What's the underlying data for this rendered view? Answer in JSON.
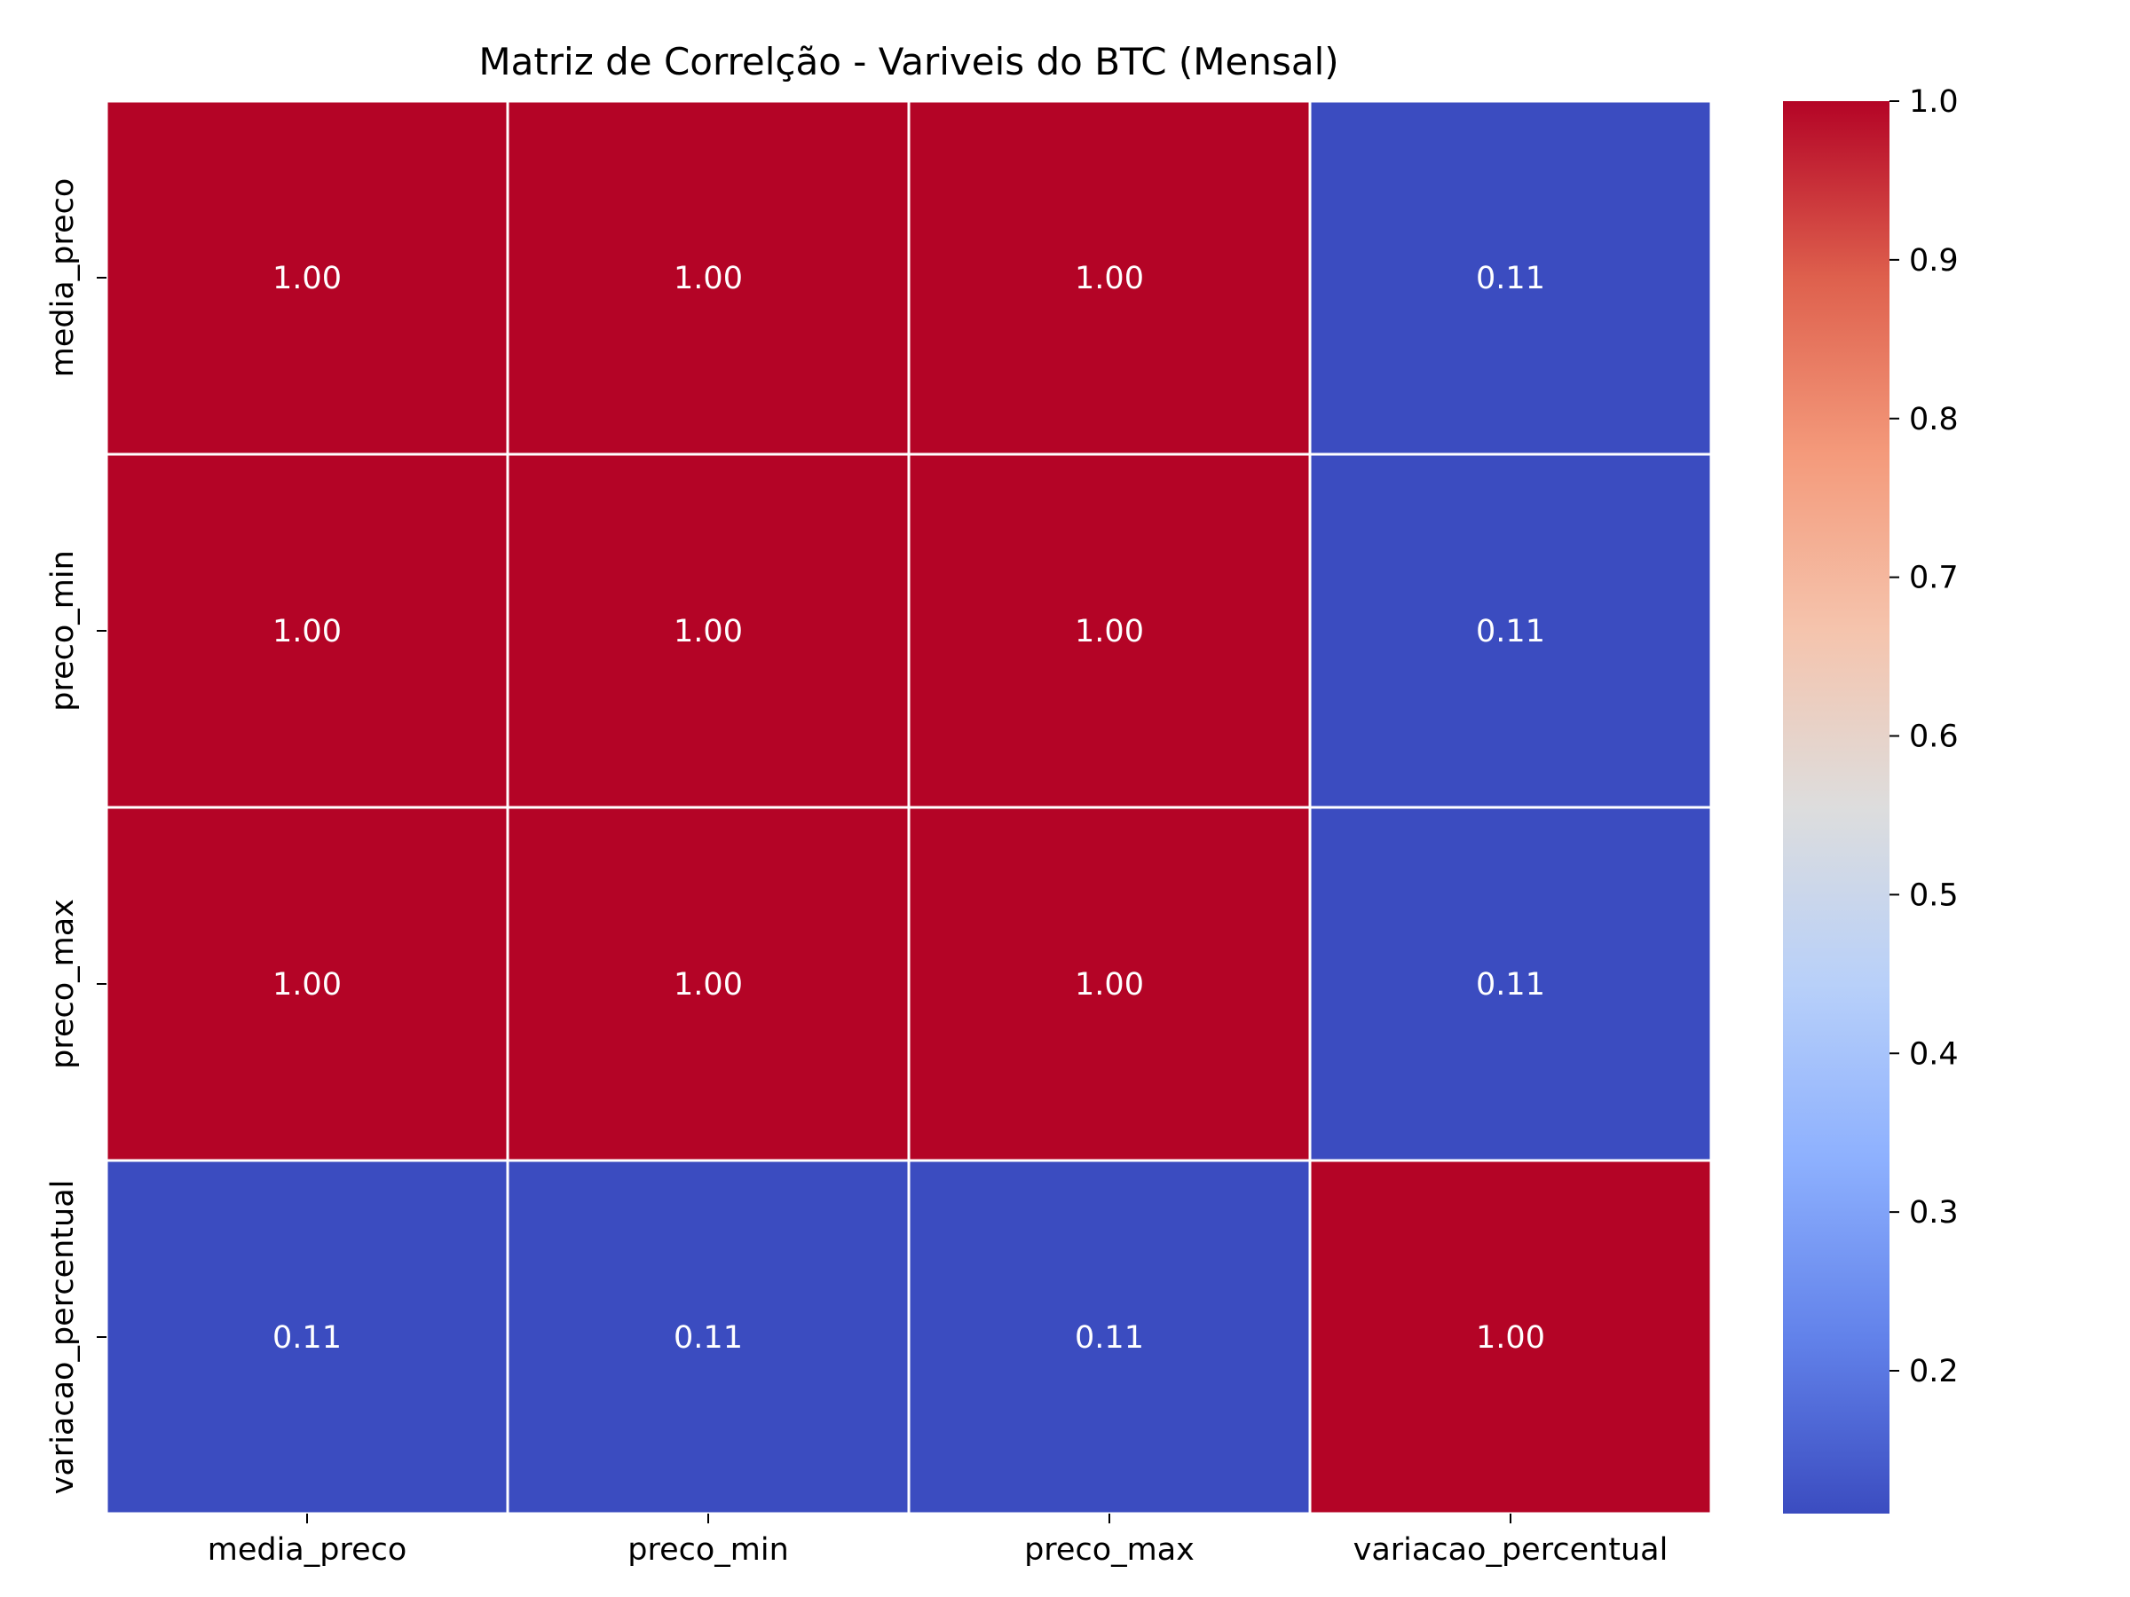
{
  "chart_data": {
    "type": "heatmap",
    "title": "Matriz de Correlção - Variveis do BTC (Mensal)",
    "xlabel": "",
    "ylabel": "",
    "x_categories": [
      "media_preco",
      "preco_min",
      "preco_max",
      "variacao_percentual"
    ],
    "y_categories": [
      "media_preco",
      "preco_min",
      "preco_max",
      "variacao_percentual"
    ],
    "values": [
      [
        1.0,
        1.0,
        1.0,
        0.11
      ],
      [
        1.0,
        1.0,
        1.0,
        0.11
      ],
      [
        1.0,
        1.0,
        1.0,
        0.11
      ],
      [
        0.11,
        0.11,
        0.11,
        1.0
      ]
    ],
    "cell_labels": [
      [
        "1.00",
        "1.00",
        "1.00",
        "0.11"
      ],
      [
        "1.00",
        "1.00",
        "1.00",
        "0.11"
      ],
      [
        "1.00",
        "1.00",
        "1.00",
        "0.11"
      ],
      [
        "0.11",
        "0.11",
        "0.11",
        "1.00"
      ]
    ],
    "colorbar": {
      "colormap": "coolwarm",
      "vmin": 0.11,
      "vmax": 1.0,
      "ticks": [
        0.2,
        0.3,
        0.4,
        0.5,
        0.6,
        0.7,
        0.8,
        0.9,
        1.0
      ],
      "tick_labels": [
        "0.2",
        "0.3",
        "0.4",
        "0.5",
        "0.6",
        "0.7",
        "0.8",
        "0.9",
        "1.0"
      ]
    },
    "grid_line_color": "#ffffff",
    "cell_text_color": "#ffffff"
  }
}
